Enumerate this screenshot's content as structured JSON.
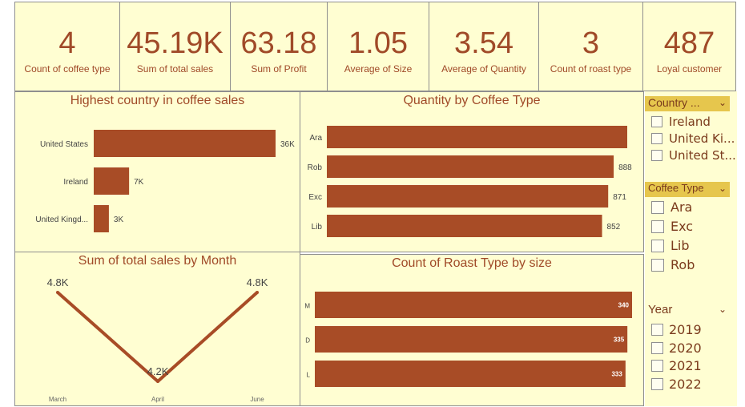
{
  "kpis": [
    {
      "value": "4",
      "label": "Count of coffee type"
    },
    {
      "value": "45.19K",
      "label": "Sum of total sales"
    },
    {
      "value": "63.18",
      "label": "Sum of Profit"
    },
    {
      "value": "1.05",
      "label": "Average of Size"
    },
    {
      "value": "3.54",
      "label": "Average of Quantity"
    },
    {
      "value": "3",
      "label": "Count of roast type"
    },
    {
      "value": "487",
      "label": "Loyal customer"
    }
  ],
  "slicers": {
    "country": {
      "title": "Country ...",
      "items": [
        "Ireland",
        "United Ki...",
        "United St..."
      ]
    },
    "coffee_type": {
      "title": "Coffee Type",
      "items": [
        "Ara",
        "Exc",
        "Lib",
        "Rob"
      ]
    },
    "year": {
      "title": "Year",
      "items": [
        "2019",
        "2020",
        "2021",
        "2022"
      ]
    }
  },
  "colors": {
    "bar": "#a84c26",
    "panel": "#fffed2",
    "text": "#a04a28",
    "slicer_header": "#e6c64d"
  },
  "chart_data": [
    {
      "type": "bar",
      "orientation": "horizontal",
      "title": "Highest country in coffee sales",
      "categories": [
        "United States",
        "Ireland",
        "United Kingd..."
      ],
      "values": [
        36,
        7,
        3
      ],
      "data_labels": [
        "36K",
        "7K",
        "3K"
      ]
    },
    {
      "type": "bar",
      "orientation": "horizontal",
      "title": "Quantity by Coffee Type",
      "categories": [
        "Ara",
        "Rob",
        "Exc",
        "Lib"
      ],
      "values": [
        930,
        888,
        871,
        852
      ],
      "data_labels": [
        "",
        "888",
        "871",
        "852"
      ]
    },
    {
      "type": "line",
      "title": "Sum of total sales by Month",
      "categories": [
        "March",
        "April",
        "June"
      ],
      "values": [
        4.8,
        4.2,
        4.8
      ],
      "data_labels": [
        "4.8K",
        "4.2K",
        "4.8K"
      ]
    },
    {
      "type": "bar",
      "orientation": "horizontal",
      "title": "Count of Roast Type by size",
      "categories": [
        "M",
        "D",
        "L"
      ],
      "values": [
        340,
        335,
        333
      ],
      "data_labels": [
        "340",
        "335",
        "333"
      ]
    }
  ]
}
